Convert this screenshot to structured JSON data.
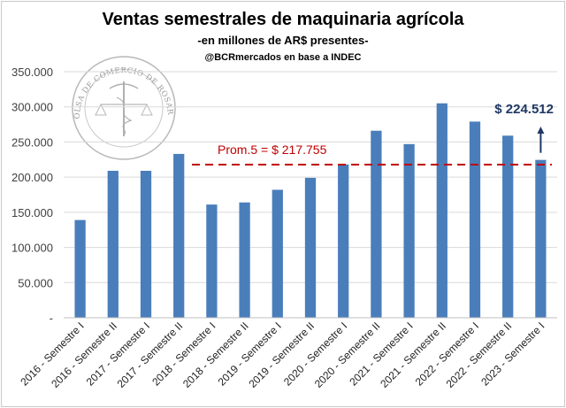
{
  "chart_data": {
    "type": "bar",
    "title": "Ventas semestrales de maquinaria agrícola",
    "subtitle": "-en millones de AR$ presentes-",
    "source": "@BCRmercados en base a INDEC",
    "categories": [
      "2016 - Semestre I",
      "2016 - Semestre II",
      "2017 - Semestre I",
      "2017 - Semestre II",
      "2018 - Semestre I",
      "2018 - Semestre II",
      "2019 - Semestre I",
      "2019 - Semestre II",
      "2020 - Semestre I",
      "2020 - Semestre II",
      "2021 - Semestre I",
      "2021 - Semestre II",
      "2022 - Semestre I",
      "2022 - Semestre II",
      "2023 - Semestre I"
    ],
    "values": [
      139000,
      209000,
      209000,
      233000,
      161000,
      164000,
      182000,
      199000,
      218000,
      266000,
      247000,
      305000,
      279000,
      259000,
      224512
    ],
    "ylim": [
      0,
      350000
    ],
    "yticks": [
      "-",
      "50.000",
      "100.000",
      "150.000",
      "200.000",
      "250.000",
      "300.000",
      "350.000"
    ],
    "grid": true,
    "bar_color": "#4a7ebb",
    "average": {
      "value": 217755,
      "label": "Prom.5 = $ 217.755",
      "color": "#c00000",
      "from_category": 4
    },
    "last_value_label": "$ 224.512",
    "last_value_color": "#1f3864"
  },
  "watermark": {
    "text": "BOLSA DE COMERCIO DE ROSARIO",
    "icon": "caduceus-seal-icon"
  }
}
